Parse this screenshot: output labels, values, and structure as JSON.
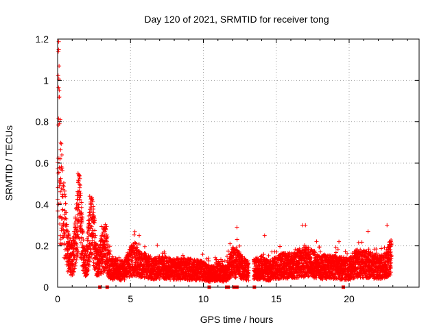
{
  "chart_data": {
    "type": "scatter",
    "title": "Day 120 of 2021, SRMTID for receiver tong",
    "xlabel": "GPS time / hours",
    "ylabel": "SRMTID / TECUs",
    "xlim": [
      0,
      24.8
    ],
    "ylim": [
      0,
      1.2
    ],
    "x_ticks": [
      0,
      5,
      10,
      15,
      20
    ],
    "x_tick_labels": [
      "0",
      "5",
      "10",
      "15",
      "20"
    ],
    "y_ticks": [
      0,
      0.2,
      0.4,
      0.6,
      0.8,
      1,
      1.2
    ],
    "y_tick_labels": [
      "0",
      "0.2",
      "0.4",
      "0.6",
      "0.8",
      "1",
      "1.2"
    ],
    "grid": true,
    "marker": "plus",
    "series": [
      {
        "name": "SRMTID",
        "color": "#ff0000",
        "envelope_x": [
          0,
          0.05,
          0.1,
          0.2,
          0.3,
          0.5,
          0.7,
          1.0,
          1.3,
          1.5,
          1.8,
          2.0,
          2.2,
          2.4,
          2.7,
          3.0,
          3.3,
          3.6,
          4.0,
          4.5,
          5.0,
          5.3,
          5.7,
          6.0,
          6.5,
          7.0,
          8.0,
          9.0,
          10.0,
          10.5,
          11.0,
          11.5,
          12.0,
          12.5,
          13.0,
          13.5,
          14.0,
          14.5,
          15.0,
          15.5,
          16.0,
          16.5,
          17.0,
          17.5,
          18.0,
          19.0,
          20.0,
          20.5,
          21.0,
          21.5,
          22.0,
          22.5,
          22.9
        ],
        "envelope_y": [
          0.45,
          1.0,
          0.75,
          0.55,
          0.45,
          0.35,
          0.2,
          0.15,
          0.3,
          0.42,
          0.15,
          0.15,
          0.3,
          0.33,
          0.12,
          0.18,
          0.22,
          0.1,
          0.1,
          0.09,
          0.14,
          0.16,
          0.12,
          0.12,
          0.1,
          0.11,
          0.1,
          0.1,
          0.09,
          0.07,
          0.09,
          0.07,
          0.14,
          0.12,
          0.09,
          0.1,
          0.11,
          0.09,
          0.11,
          0.12,
          0.12,
          0.13,
          0.14,
          0.13,
          0.11,
          0.11,
          0.1,
          0.13,
          0.13,
          0.12,
          0.11,
          0.12,
          0.17
        ],
        "spikes": [
          [
            0.05,
            1.14
          ],
          [
            0.1,
            1.07
          ],
          [
            0.12,
            0.92
          ],
          [
            0.18,
            0.81
          ],
          [
            1.4,
            0.55
          ],
          [
            2.2,
            0.44
          ],
          [
            3.2,
            0.29
          ],
          [
            5.6,
            0.25
          ],
          [
            12.3,
            0.29
          ],
          [
            14.2,
            0.25
          ],
          [
            16.8,
            0.3
          ],
          [
            17.0,
            0.3
          ],
          [
            19.3,
            0.22
          ],
          [
            21.3,
            0.27
          ],
          [
            22.6,
            0.3
          ],
          [
            22.8,
            0.22
          ]
        ],
        "gaps": [
          [
            13.1,
            13.45
          ]
        ]
      }
    ],
    "zero_markers_x": [
      2.9,
      3.4,
      10.4,
      11.6,
      11.7,
      12.1,
      12.3,
      13.5,
      19.6
    ]
  }
}
